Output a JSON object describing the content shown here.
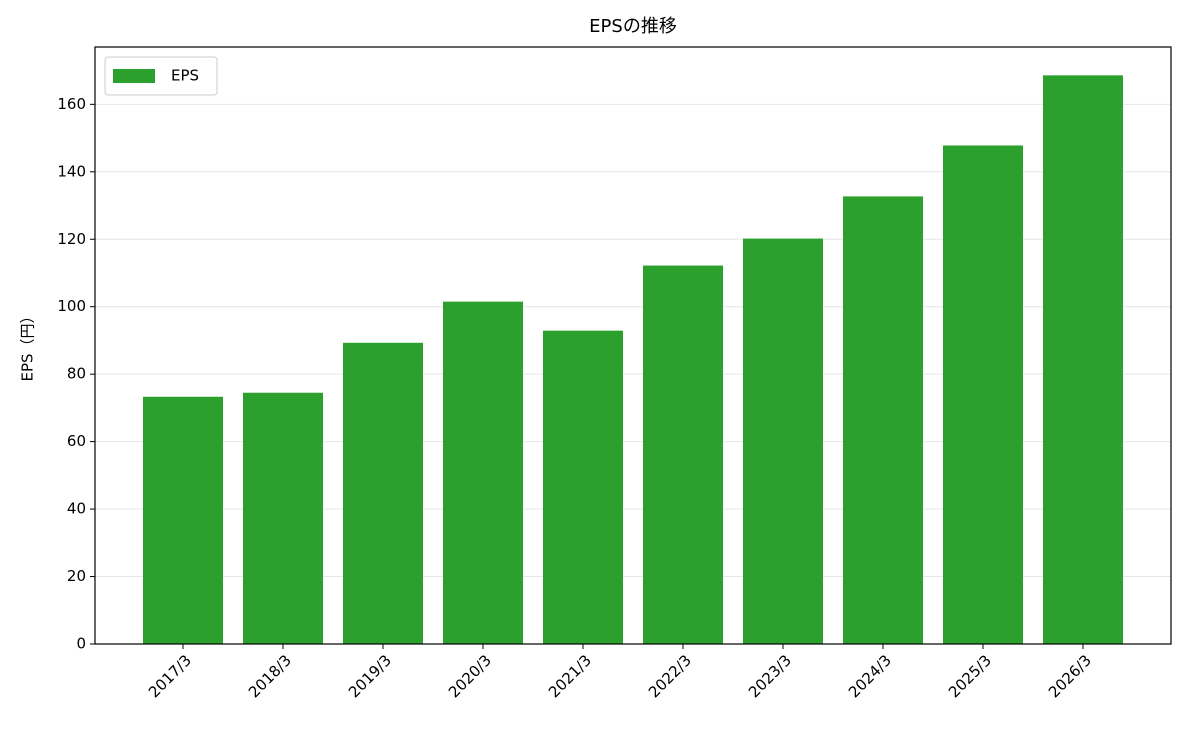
{
  "chart_data": {
    "type": "bar",
    "title": "EPSの推移",
    "y_label": "EPS（円）",
    "categories": [
      "2017/3",
      "2018/3",
      "2019/3",
      "2020/3",
      "2021/3",
      "2022/3",
      "2023/3",
      "2024/3",
      "2025/3",
      "2026/3"
    ],
    "series": [
      {
        "name": "EPS",
        "color": "#2ca02c",
        "values": [
          73.3,
          74.5,
          89.3,
          101.5,
          92.9,
          112.2,
          120.2,
          132.7,
          147.8,
          168.6
        ]
      }
    ],
    "ylim": [
      0,
      177
    ],
    "yticks": [
      0,
      20,
      40,
      60,
      80,
      100,
      120,
      140,
      160
    ],
    "grid": true,
    "legend": "upper-left"
  }
}
